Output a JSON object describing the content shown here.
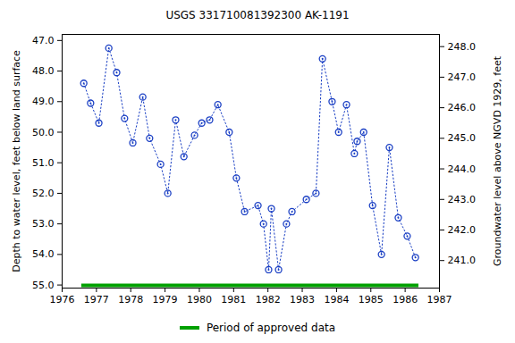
{
  "chart_data": {
    "type": "line",
    "title": "USGS 331710081392300 AK-1191",
    "y_label": "Depth to water level, feet below land surface",
    "y2_label": "Groundwater level above NGVD 1929, feet",
    "x": [
      1976.63,
      1976.83,
      1977.07,
      1977.36,
      1977.59,
      1977.82,
      1978.06,
      1978.35,
      1978.55,
      1978.87,
      1979.08,
      1979.31,
      1979.55,
      1979.86,
      1980.07,
      1980.3,
      1980.54,
      1980.87,
      1981.08,
      1981.32,
      1981.71,
      1981.87,
      1982.02,
      1982.1,
      1982.31,
      1982.54,
      1982.7,
      1983.12,
      1983.4,
      1983.59,
      1983.87,
      1984.06,
      1984.29,
      1984.52,
      1984.6,
      1984.79,
      1985.05,
      1985.31,
      1985.54,
      1985.8,
      1986.06,
      1986.3
    ],
    "values": [
      48.4,
      49.05,
      49.7,
      47.25,
      48.05,
      49.55,
      50.35,
      48.85,
      50.2,
      51.05,
      52.0,
      49.6,
      50.8,
      50.1,
      49.7,
      49.6,
      49.1,
      50.0,
      51.5,
      52.6,
      52.4,
      53.0,
      54.5,
      52.5,
      54.5,
      53.0,
      52.6,
      52.2,
      52.0,
      47.6,
      49.0,
      50.0,
      49.1,
      50.7,
      50.3,
      50.0,
      52.4,
      54.0,
      50.5,
      52.8,
      53.4,
      54.1
    ],
    "color": "#1a3fc4",
    "marker": "circle",
    "line_style": "dotted",
    "xlim": [
      1976,
      1987
    ],
    "xticks": [
      1976,
      1977,
      1978,
      1979,
      1980,
      1981,
      1982,
      1983,
      1984,
      1985,
      1986,
      1987
    ],
    "ylim": [
      46.8,
      55.1
    ],
    "yticks": [
      {
        "value": 47,
        "label": "47.0"
      },
      {
        "value": 48,
        "label": "48.0"
      },
      {
        "value": 49,
        "label": "49.0"
      },
      {
        "value": 50,
        "label": "50.0"
      },
      {
        "value": 51,
        "label": "51.0"
      },
      {
        "value": 52,
        "label": "52.0"
      },
      {
        "value": 53,
        "label": "53.0"
      },
      {
        "value": 54,
        "label": "54.0"
      },
      {
        "value": 55,
        "label": "55.0"
      }
    ],
    "y2lim": [
      248.4,
      240.1
    ],
    "y2ticks": [
      {
        "value": 241,
        "label": "241.0"
      },
      {
        "value": 242,
        "label": "242.0"
      },
      {
        "value": 243,
        "label": "243.0"
      },
      {
        "value": 244,
        "label": "244.0"
      },
      {
        "value": 245,
        "label": "245.0"
      },
      {
        "value": 246,
        "label": "246.0"
      },
      {
        "value": 247,
        "label": "247.0"
      },
      {
        "value": 248,
        "label": "248.0"
      }
    ],
    "approved_period": {
      "name": "Period of approved data",
      "color": "#00a000",
      "x": [
        1976.57,
        1986.4
      ]
    },
    "legend": "bottom",
    "grid": false
  }
}
